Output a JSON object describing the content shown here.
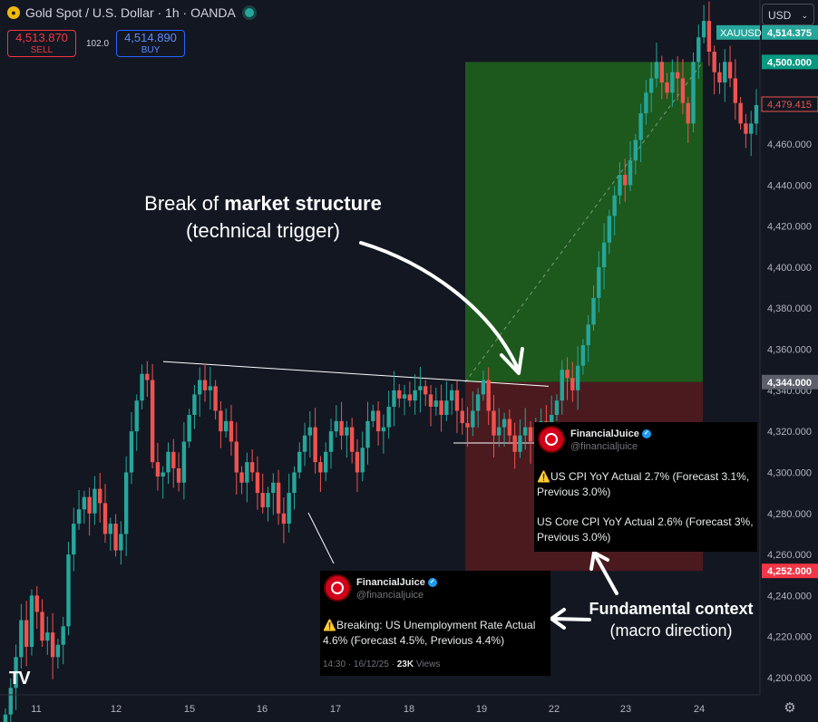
{
  "header": {
    "symbol_title": "Gold Spot / U.S. Dollar · 1h · OANDA",
    "currency": "USD",
    "sell": {
      "price": "4,513.870",
      "label": "SELL"
    },
    "buy": {
      "price": "4,514.890",
      "label": "BUY"
    },
    "spread": "102.0"
  },
  "annotations": {
    "break_line1_pre": "Break of ",
    "break_line1_bold": "market structure",
    "break_line2": "(technical trigger)",
    "fund_line1": "Fundamental context",
    "fund_line2": "(macro direction)"
  },
  "tweets": [
    {
      "name": "FinancialJuice",
      "handle": "@financialjuice",
      "body1": "⚠️US CPI YoY Actual 2.7% (Forecast 3.1%, Previous 3.0%)",
      "body2": "US Core CPI YoY Actual 2.6% (Forecast 3%, Previous 3.0%)"
    },
    {
      "name": "FinancialJuice",
      "handle": "@financialjuice",
      "body1": "⚠️Breaking: US Unemployment Rate Actual 4.6% (Forecast 4.5%, Previous 4.4%)",
      "meta_time": "14:30 · 16/12/25 · ",
      "meta_views": "23K",
      "meta_suffix": " Views"
    }
  ],
  "colors": {
    "background": "#131722",
    "up": "#26a69a",
    "down": "#ef5350",
    "profit_zone": "#1e5c1e",
    "loss_zone": "#4a1a1f"
  },
  "chart_data": {
    "type": "candlestick",
    "x_ticks": [
      "11",
      "12",
      "15",
      "16",
      "17",
      "18",
      "19",
      "22",
      "23",
      "24"
    ],
    "y_ticks": [
      4200,
      4220,
      4240,
      4260,
      4280,
      4300,
      4320,
      4340,
      4360,
      4380,
      4400,
      4420,
      4440,
      4460
    ],
    "y_tick_labels": [
      "4,200.000",
      "4,220.000",
      "4,240.000",
      "4,260.000",
      "4,280.000",
      "4,300.000",
      "4,320.000",
      "4,340.000",
      "4,360.000",
      "4,380.000",
      "4,400.000",
      "4,420.000",
      "4,440.000",
      "4,460.000"
    ],
    "ylim": [
      4180,
      4532
    ],
    "price_tags": [
      {
        "label": "XAUUSD",
        "value": 4514.375,
        "text": "4,514.375",
        "color": "#26a69a"
      },
      {
        "label": "",
        "value": 4500,
        "text": "4,500.000",
        "color": "#089981"
      },
      {
        "label": "",
        "value": 4479.415,
        "text": "4,479.415",
        "color": "#131722",
        "border": "#ef5350"
      },
      {
        "label": "",
        "value": 4344,
        "text": "4,344.000",
        "color": "#5d606b"
      },
      {
        "label": "",
        "value": 4252,
        "text": "4,252.000",
        "color": "#f23645"
      }
    ],
    "trade": {
      "entry": 4344,
      "target": 4500,
      "stop": 4252
    },
    "trendline": [
      {
        "x": "Dec 12 22:00",
        "y": 4354
      },
      {
        "x": "Dec 19 03:00",
        "y": 4342
      }
    ],
    "close_series": [
      4182,
      4195,
      4210,
      4228,
      4215,
      4240,
      4232,
      4218,
      4222,
      4210,
      4216,
      4225,
      4260,
      4275,
      4282,
      4288,
      4280,
      4292,
      4285,
      4270,
      4275,
      4262,
      4270,
      4300,
      4320,
      4335,
      4348,
      4345,
      4305,
      4298,
      4300,
      4310,
      4302,
      4295,
      4315,
      4328,
      4338,
      4345,
      4340,
      4342,
      4330,
      4320,
      4325,
      4315,
      4300,
      4295,
      4305,
      4300,
      4290,
      4283,
      4290,
      4295,
      4280,
      4275,
      4290,
      4300,
      4310,
      4318,
      4322,
      4305,
      4300,
      4310,
      4320,
      4325,
      4318,
      4322,
      4310,
      4300,
      4312,
      4325,
      4330,
      4320,
      4322,
      4332,
      4340,
      4336,
      4338,
      4335,
      4340,
      4342,
      4338,
      4332,
      4335,
      4328,
      4335,
      4340,
      4330,
      4324,
      4322,
      4330,
      4338,
      4345,
      4330,
      4318,
      4322,
      4326,
      4318,
      4310,
      4318,
      4322,
      4315,
      4322,
      4325,
      4320,
      4328,
      4335,
      4350,
      4346,
      4340,
      4352,
      4362,
      4372,
      4385,
      4400,
      4412,
      4425,
      4435,
      4445,
      4440,
      4452,
      4462,
      4475,
      4485,
      4492,
      4500,
      4490,
      4485,
      4495,
      4492,
      4480,
      4470,
      4500,
      4512,
      4520,
      4505,
      4495,
      4490,
      4500,
      4492,
      4480,
      4470,
      4465,
      4470,
      4479
    ]
  }
}
